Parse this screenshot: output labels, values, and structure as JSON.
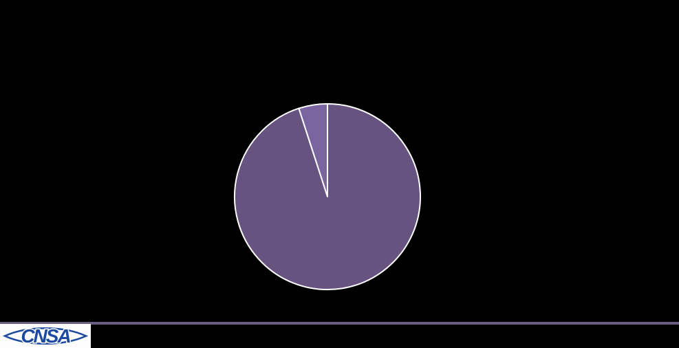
{
  "slide": {
    "background_color": "#000000"
  },
  "chart_data": {
    "type": "pie",
    "title": "",
    "legend": false,
    "data_labels_shown": false,
    "start_angle": 90,
    "direction": "counterclockwise",
    "stroke_color": "#ffffff",
    "background": "#000000",
    "slices": [
      {
        "value": 5,
        "color": "#7b65a1"
      },
      {
        "value": 95,
        "color": "#675380"
      }
    ]
  },
  "footer": {
    "divider_color": "#6a5e80"
  },
  "logo": {
    "text": "CNSA",
    "text_color": "#1d4a9e",
    "outline_color": "#1d4a9e",
    "background_color": "#fdfdfd"
  }
}
